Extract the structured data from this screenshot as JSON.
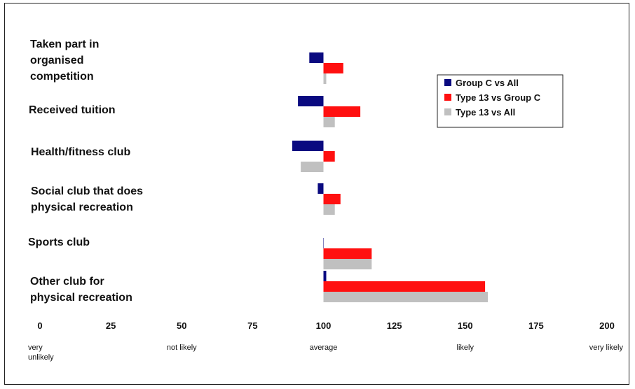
{
  "chart_data": {
    "type": "bar",
    "orientation": "horizontal",
    "baseline": 100,
    "categories": [
      [
        "Taken part in",
        "organised",
        "competition"
      ],
      [
        "Received tuition"
      ],
      [
        "Health/fitness club"
      ],
      [
        "Social club that does",
        "physical recreation"
      ],
      [
        "Sports club"
      ],
      [
        "Other club for",
        "physical recreation"
      ]
    ],
    "series": [
      {
        "name": "Group C vs All",
        "color": "#0a0a80",
        "values": [
          95,
          91,
          89,
          98,
          100,
          101
        ]
      },
      {
        "name": "Type 13 vs Group C",
        "color": "#ff1010",
        "values": [
          107,
          113,
          104,
          106,
          117,
          157
        ]
      },
      {
        "name": "Type 13 vs All",
        "color": "#c0c0c0",
        "values": [
          101,
          104,
          92,
          104,
          117,
          158
        ]
      }
    ],
    "xlim": [
      0,
      200
    ],
    "x_ticks": [
      "0",
      "25",
      "50",
      "75",
      "100",
      "125",
      "150",
      "175",
      "200"
    ],
    "qualitative_labels": [
      {
        "value": 0,
        "lines": [
          "very",
          "unlikely"
        ]
      },
      {
        "value": 50,
        "lines": [
          "not likely"
        ]
      },
      {
        "value": 100,
        "lines": [
          "average"
        ]
      },
      {
        "value": 150,
        "lines": [
          "likely"
        ]
      },
      {
        "value": 200,
        "lines": [
          "very likely"
        ]
      }
    ],
    "legend_position": "top-right"
  }
}
